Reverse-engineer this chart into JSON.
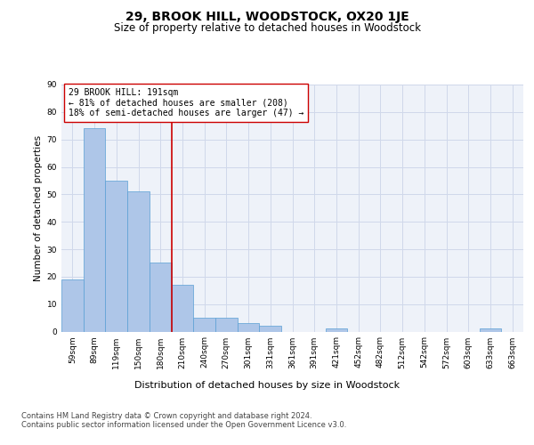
{
  "title": "29, BROOK HILL, WOODSTOCK, OX20 1JE",
  "subtitle": "Size of property relative to detached houses in Woodstock",
  "xlabel": "Distribution of detached houses by size in Woodstock",
  "ylabel": "Number of detached properties",
  "categories": [
    "59sqm",
    "89sqm",
    "119sqm",
    "150sqm",
    "180sqm",
    "210sqm",
    "240sqm",
    "270sqm",
    "301sqm",
    "331sqm",
    "361sqm",
    "391sqm",
    "421sqm",
    "452sqm",
    "482sqm",
    "512sqm",
    "542sqm",
    "572sqm",
    "603sqm",
    "633sqm",
    "663sqm"
  ],
  "bar_heights": [
    19,
    74,
    55,
    51,
    25,
    17,
    5,
    5,
    3,
    2,
    0,
    0,
    1,
    0,
    0,
    0,
    0,
    0,
    0,
    1,
    0
  ],
  "bar_color": "#aec6e8",
  "bar_edge_color": "#5a9fd4",
  "reference_line_color": "#cc0000",
  "annotation_box_text": "29 BROOK HILL: 191sqm\n← 81% of detached houses are smaller (208)\n18% of semi-detached houses are larger (47) →",
  "ylim": [
    0,
    90
  ],
  "yticks": [
    0,
    10,
    20,
    30,
    40,
    50,
    60,
    70,
    80,
    90
  ],
  "grid_color": "#d0d8ea",
  "background_color": "#eef2f9",
  "footer_text": "Contains HM Land Registry data © Crown copyright and database right 2024.\nContains public sector information licensed under the Open Government Licence v3.0.",
  "title_fontsize": 10,
  "subtitle_fontsize": 8.5,
  "xlabel_fontsize": 8,
  "ylabel_fontsize": 7.5,
  "tick_fontsize": 6.5,
  "annotation_fontsize": 7,
  "footer_fontsize": 6
}
